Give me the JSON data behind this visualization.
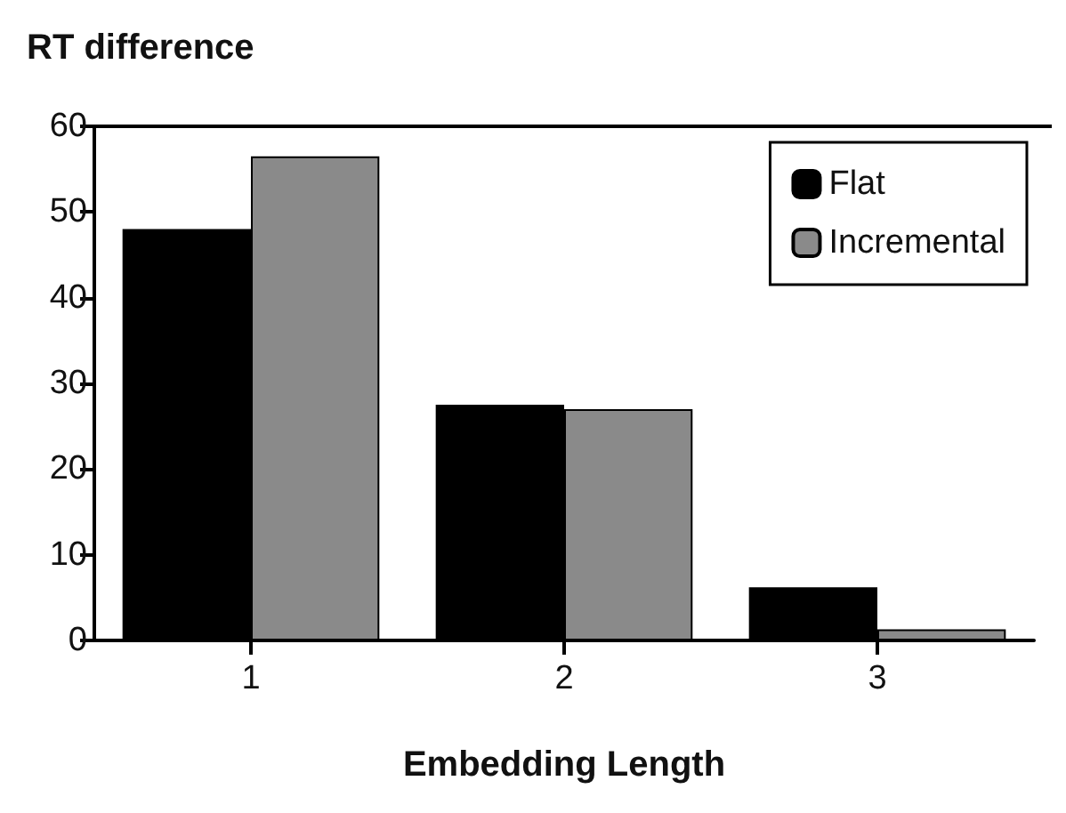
{
  "chart_data": {
    "type": "bar",
    "title": "RT difference",
    "xlabel": "Embedding Length",
    "categories": [
      "1",
      "2",
      "3"
    ],
    "series": [
      {
        "name": "Flat",
        "color": "#000000",
        "values": [
          48,
          27.5,
          6.2
        ]
      },
      {
        "name": "Incremental",
        "color": "#8a8a8a",
        "values": [
          56.5,
          27,
          1.3
        ]
      }
    ],
    "ylim": [
      0,
      60
    ],
    "yticks": [
      0,
      10,
      20,
      30,
      40,
      50,
      60
    ],
    "grid": false,
    "legend": "top right"
  }
}
